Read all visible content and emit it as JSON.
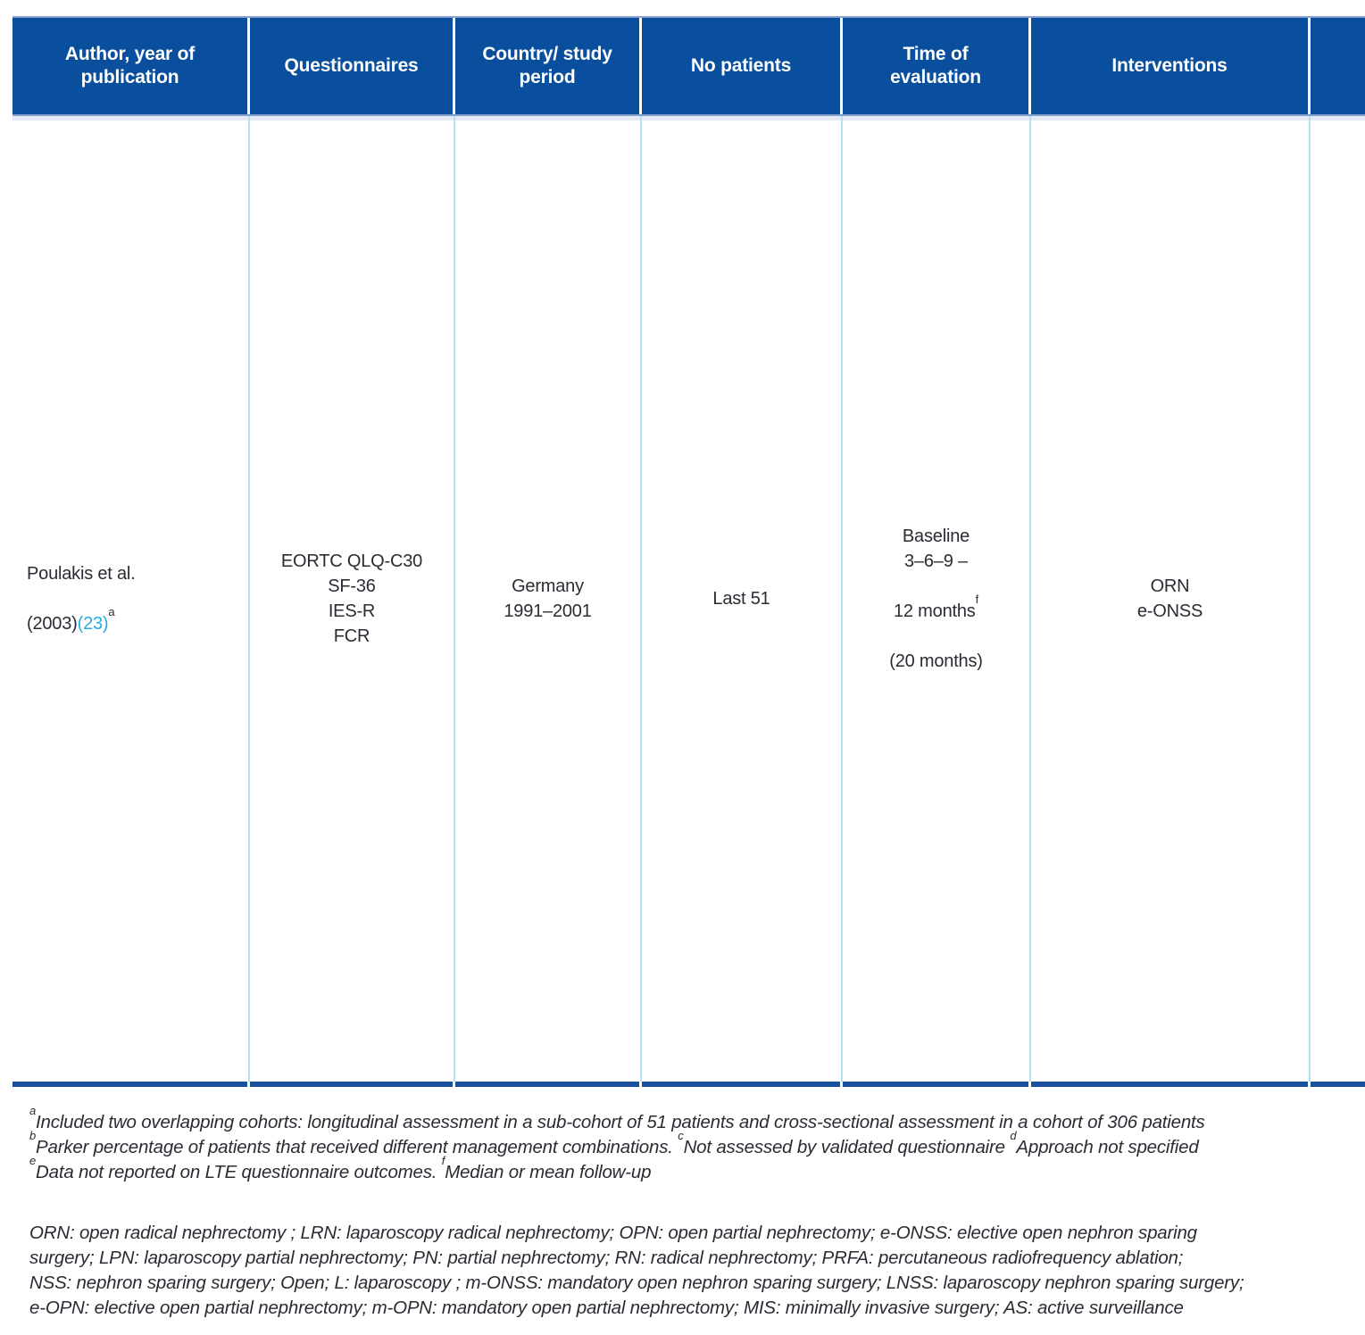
{
  "colors": {
    "header_bg": "#0a4f9d",
    "header_frame_top": "#8ba3cc",
    "header_frame_bottom": "#7f9cc9",
    "column_divider": "#b2e2f6",
    "bottom_rule": "#174f9d",
    "citation_link": "#29abe2",
    "body_text": "#2b2b34"
  },
  "table": {
    "headers": {
      "author": "Author, year of\npublication",
      "questionnaires": "Questionnaires",
      "country": "Country/ study\nperiod",
      "patients": "No patients",
      "time": "Time of\nevaluation",
      "interventions": "Interventions",
      "extra": ""
    },
    "row": {
      "author_line1": "Poulakis et al.",
      "author_year": "(2003)",
      "author_ref": "(23)",
      "author_sup": "a",
      "questionnaires": "EORTC QLQ-C30\nSF-36\nIES-R\nFCR",
      "country": "Germany\n1991–2001",
      "patients": "Last 51",
      "time_top": "Baseline\n3–6–9 –",
      "time_months": "12 months",
      "time_sup": "f",
      "time_bottom": "(20 months)",
      "interventions": "ORN\ne-ONSS",
      "extra": ""
    }
  },
  "footnotes": {
    "sup_a": "a",
    "text_a": "Included two overlapping cohorts: longitudinal assessment in a sub-cohort of 51 patients and cross-sectional assessment in a cohort of 306 patients",
    "sup_b": "b",
    "text_b": "Parker percentage of patients that received different management combinations. ",
    "sup_c": "c",
    "text_c": "Not assessed by validated questionnaire ",
    "sup_d": "d",
    "text_d": "Approach not specified",
    "sup_e": "e",
    "text_e": "Data not reported on LTE questionnaire outcomes. ",
    "sup_f": "f",
    "text_f": "Median or mean follow-up"
  },
  "abbreviations": {
    "line1": "ORN: open radical nephrectomy ; LRN: laparoscopy radical nephrectomy;  OPN: open partial nephrectomy; e-ONSS: elective open nephron sparing",
    "line2": "surgery; LPN: laparoscopy partial nephrectomy; PN: partial nephrectomy; RN: radical nephrectomy; PRFA: percutaneous radiofrequency ablation;",
    "line3": "NSS: nephron sparing surgery; Open; L: laparoscopy ; m-ONSS: mandatory open nephron sparing surgery; LNSS: laparoscopy nephron sparing surgery;",
    "line4": "e-OPN: elective open partial nephrectomy; m-OPN: mandatory open partial nephrectomy;  MIS: minimally invasive surgery;  AS: active surveillance"
  }
}
